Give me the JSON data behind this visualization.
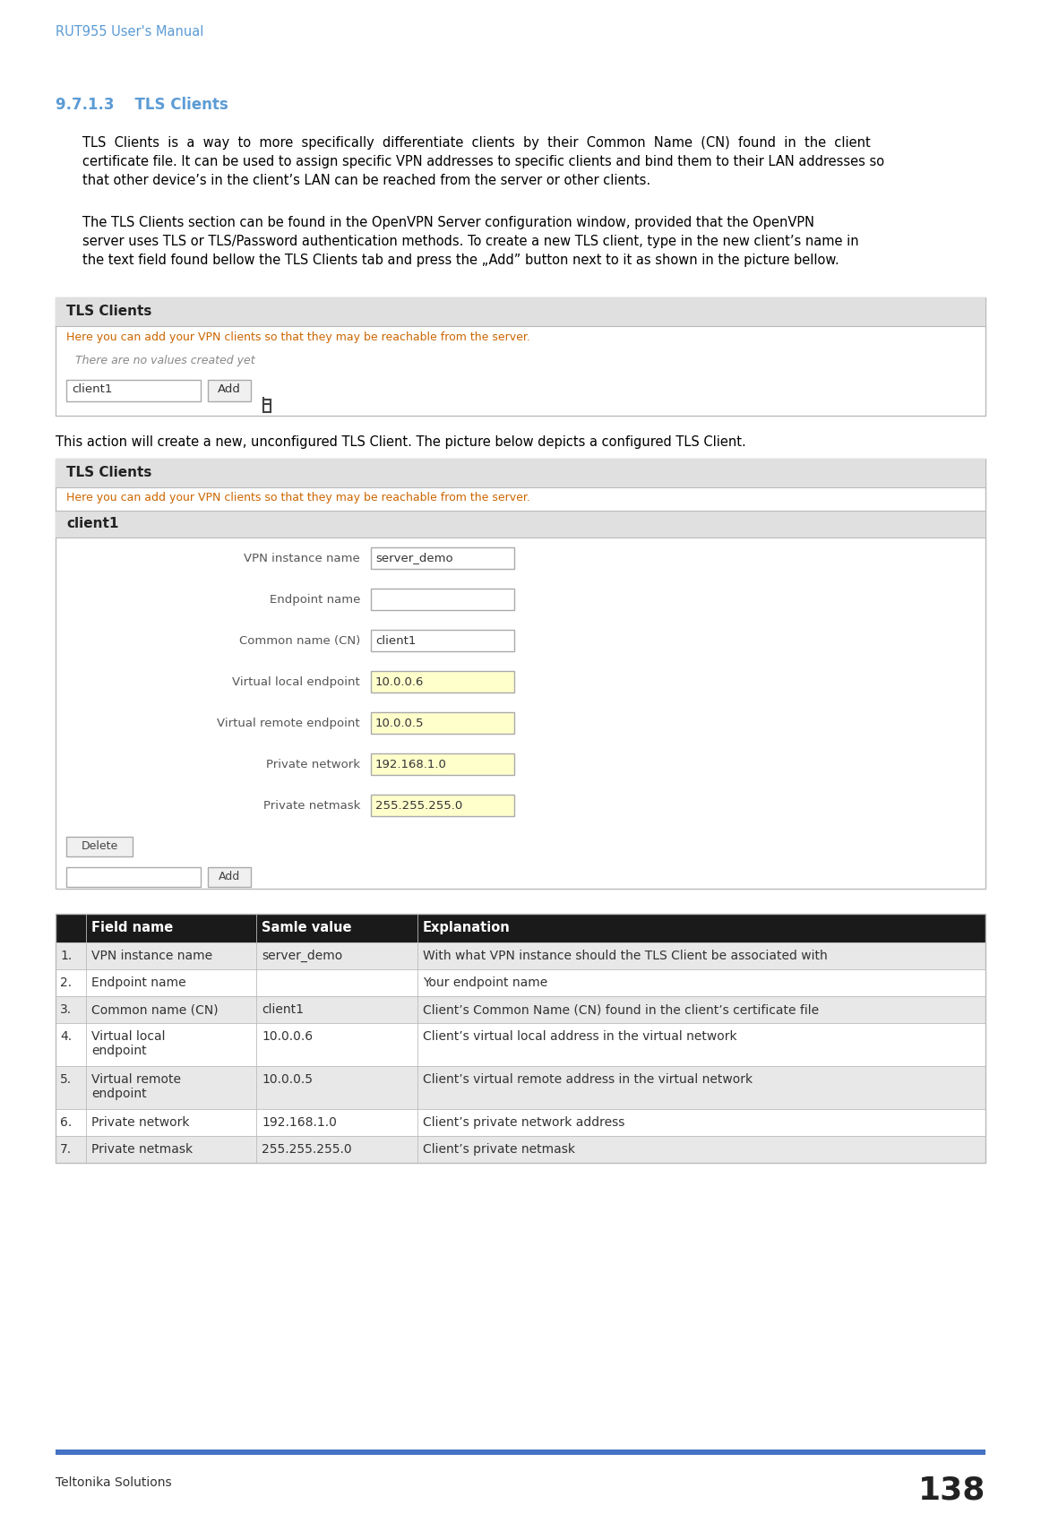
{
  "header_text": "RUT955 User's Manual",
  "header_color": "#5B9BD5",
  "section_number": "9.7.1.3",
  "section_title": "TLS Clients",
  "section_color": "#5B9BD5",
  "para1_lines": [
    "TLS  Clients  is  a  way  to  more  specifically  differentiate  clients  by  their  Common  Name  (CN)  found  in  the  client",
    "certificate file. It can be used to assign specific VPN addresses to specific clients and bind them to their LAN addresses so",
    "that other device’s in the client’s LAN can be reached from the server or other clients."
  ],
  "para2_lines": [
    "The TLS Clients section can be found in the OpenVPN Server configuration window, provided that the OpenVPN",
    "server uses TLS or TLS/Password authentication methods. To create a new TLS client, type in the new client’s name in",
    "the text field found bellow the TLS Clients tab and press the „Add” button next to it as shown in the picture bellow."
  ],
  "para3": "This action will create a new, unconfigured TLS Client. The picture below depicts a configured TLS Client.",
  "footer_text": "Teltonika Solutions",
  "footer_number": "138",
  "footer_bar_color": "#4472C4",
  "bg_color": "#FFFFFF",
  "tls_box_title": "TLS Clients",
  "tls_box_subtitle": "Here you can add your VPN clients so that they may be reachable from the server.",
  "tls_box_subtitle_color": "#CC6600",
  "tls_box_placeholder": "There are no values created yet",
  "tls_box_input": "client1",
  "tls_box2_client": "client1",
  "box_header_bg": "#E0E0E0",
  "box_client_bg": "#E0E0E0",
  "box_border_color": "#BBBBBB",
  "form_fields": [
    {
      "label": "VPN instance name",
      "value": "server_demo",
      "highlighted": false
    },
    {
      "label": "Endpoint name",
      "value": "",
      "highlighted": false
    },
    {
      "label": "Common name (CN)",
      "value": "client1",
      "highlighted": false
    },
    {
      "label": "Virtual local endpoint",
      "value": "10.0.0.6",
      "highlighted": true
    },
    {
      "label": "Virtual remote endpoint",
      "value": "10.0.0.5",
      "highlighted": true
    },
    {
      "label": "Private network",
      "value": "192.168.1.0",
      "highlighted": true
    },
    {
      "label": "Private netmask",
      "value": "255.255.255.0",
      "highlighted": true
    }
  ],
  "highlight_color": "#FFFFCC",
  "table_header_bg": "#1A1A1A",
  "table_header_fg": "#FFFFFF",
  "table_alt_bg": "#E8E8E8",
  "table_white_bg": "#FFFFFF",
  "table_border": "#BBBBBB",
  "table_cols": [
    "Field name",
    "Samle value",
    "Explanation"
  ],
  "table_rows": [
    [
      "1.",
      "VPN instance name",
      "server_demo",
      "With what VPN instance should the TLS Client be associated with"
    ],
    [
      "2.",
      "Endpoint name",
      "",
      "Your endpoint name"
    ],
    [
      "3.",
      "Common name (CN)",
      "client1",
      "Client’s Common Name (CN) found in the client’s certificate file"
    ],
    [
      "4.",
      "Virtual local\nendpoint",
      "10.0.0.6",
      "Client’s virtual local address in the virtual network"
    ],
    [
      "5.",
      "Virtual remote\nendpoint",
      "10.0.0.5",
      "Client’s virtual remote address in the virtual network"
    ],
    [
      "6.",
      "Private network",
      "192.168.1.0",
      "Client’s private network address"
    ],
    [
      "7.",
      "Private netmask",
      "255.255.255.0",
      "Client’s private netmask"
    ]
  ]
}
